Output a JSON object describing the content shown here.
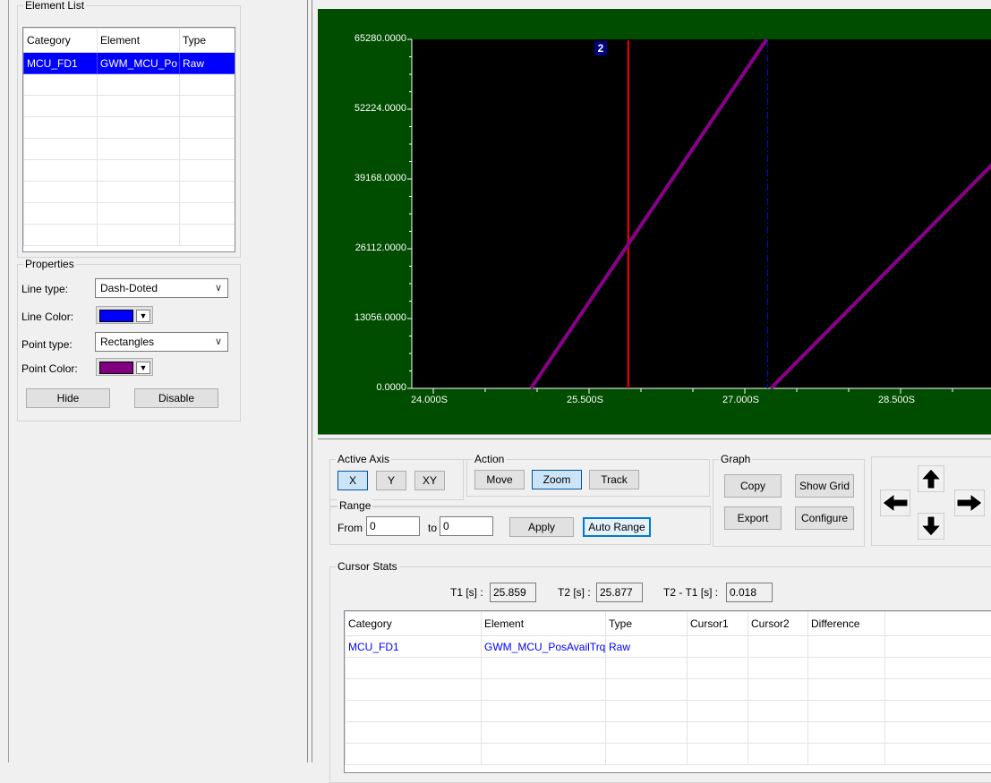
{
  "element_list": {
    "title": "Element List",
    "columns": [
      "Category",
      "Element",
      "Type"
    ],
    "rows": [
      {
        "category": "MCU_FD1",
        "element": "GWM_MCU_Po",
        "type": "Raw"
      }
    ]
  },
  "properties": {
    "title": "Properties",
    "line_type_label": "Line type:",
    "line_type_value": "Dash-Doted",
    "line_color_label": "Line Color:",
    "line_color": "#0000ff",
    "point_type_label": "Point type:",
    "point_type_value": "Rectangles",
    "point_color_label": "Point Color:",
    "point_color": "#800080",
    "hide_label": "Hide",
    "disable_label": "Disable"
  },
  "plot": {
    "y_ticks": [
      "65280.0000",
      "52224.0000",
      "39168.0000",
      "26112.0000",
      "13056.0000",
      "0.0000"
    ],
    "x_ticks": [
      "24.000S",
      "25.500S",
      "27.000S",
      "28.500S"
    ],
    "cursor_label": "2",
    "background": "#004d00",
    "line_color": "#8b008b"
  },
  "chart_data": {
    "type": "line",
    "x_unit": "s",
    "xlim": [
      24.0,
      29.9
    ],
    "ylim": [
      0,
      65280
    ],
    "x_ticks": [
      24.0,
      25.5,
      27.0,
      28.5
    ],
    "y_ticks": [
      0,
      13056,
      26112,
      39168,
      52224,
      65280
    ],
    "series": [
      {
        "points": [
          [
            24.94,
            0
          ],
          [
            27.21,
            65280
          ]
        ]
      },
      {
        "points": [
          [
            27.25,
            0
          ],
          [
            29.9,
            52000
          ]
        ]
      }
    ],
    "cursors": [
      {
        "label": "2",
        "x": 25.877,
        "color": "#ff0000"
      },
      {
        "x": 27.22,
        "color": "#0000ff",
        "style": "dashed"
      }
    ]
  },
  "active_axis": {
    "title": "Active Axis",
    "buttons": [
      "X",
      "Y",
      "XY"
    ],
    "active": "X"
  },
  "action": {
    "title": "Action",
    "buttons": [
      "Move",
      "Zoom",
      "Track"
    ],
    "active": "Zoom"
  },
  "range": {
    "title": "Range",
    "from_label": "From",
    "from_value": "0",
    "to_label": "to",
    "to_value": "0",
    "apply_label": "Apply",
    "auto_range_label": "Auto Range"
  },
  "graph": {
    "title": "Graph",
    "copy_label": "Copy",
    "show_grid_label": "Show Grid",
    "export_label": "Export",
    "configure_label": "Configure"
  },
  "cursor_stats": {
    "title": "Cursor Stats",
    "t1_label": "T1 [s] :",
    "t1_value": "25.859",
    "t2_label": "T2 [s] :",
    "t2_value": "25.877",
    "diff_label": "T2 - T1 [s] :",
    "diff_value": "0.018",
    "columns": [
      "Category",
      "Element",
      "Type",
      "Cursor1",
      "Cursor2",
      "Difference"
    ],
    "rows": [
      {
        "category": "MCU_FD1",
        "element": "GWM_MCU_PosAvailTrq",
        "type": "Raw",
        "cursor1": "",
        "cursor2": "",
        "difference": ""
      }
    ]
  }
}
